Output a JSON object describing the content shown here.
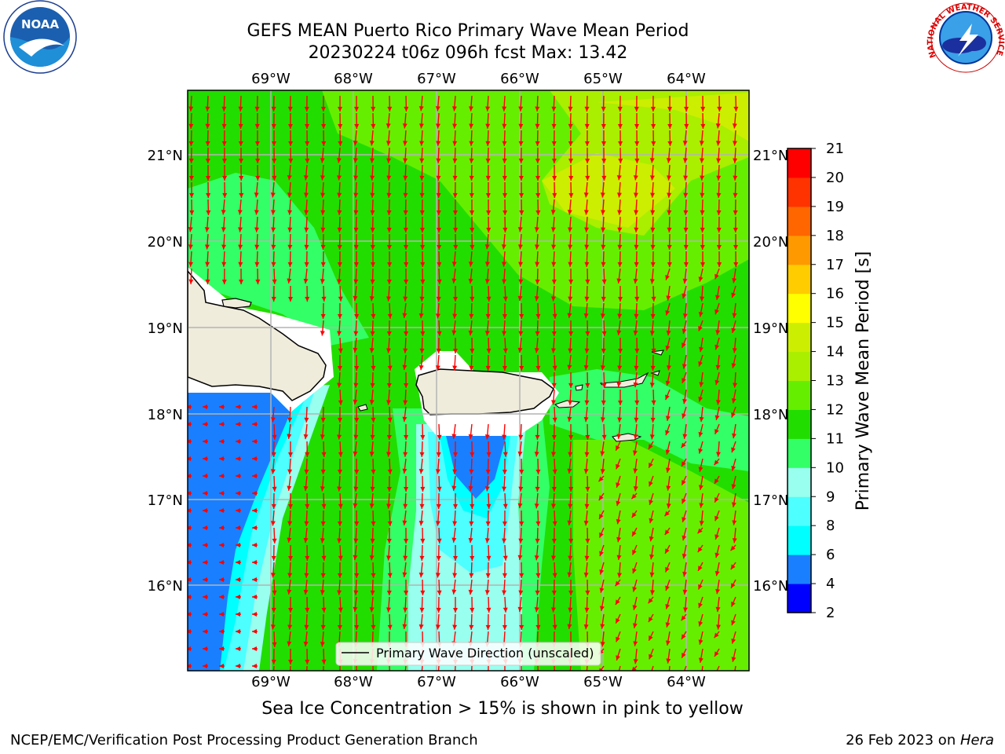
{
  "header": {
    "title_line1": "GEFS MEAN Puerto Rico Primary Wave Mean Period",
    "title_line2": "20230224 t06z 096h fcst   Max: 13.42"
  },
  "logos": {
    "noaa_text": "NOAA",
    "nws_text": "NATIONAL WEATHER SERVICE"
  },
  "axes": {
    "lon_labels": [
      "69°W",
      "68°W",
      "67°W",
      "66°W",
      "65°W",
      "64°W"
    ],
    "lat_labels": [
      "21°N",
      "20°N",
      "19°N",
      "18°N",
      "17°N",
      "16°N"
    ]
  },
  "legend": {
    "label": "Primary Wave Direction (unscaled)"
  },
  "colorbar": {
    "label": "Primary Wave Mean Period [s]",
    "ticks": [
      "2",
      "4",
      "6",
      "8",
      "9",
      "10",
      "11",
      "12",
      "13",
      "14",
      "15",
      "16",
      "17",
      "18",
      "19",
      "20",
      "21"
    ],
    "colors": [
      "#0000ff",
      "#1a7fff",
      "#00ffff",
      "#4dffff",
      "#99ffee",
      "#33ff66",
      "#22dd00",
      "#66ee00",
      "#aaee00",
      "#ccee00",
      "#ffff00",
      "#ffcc00",
      "#ff9900",
      "#ff6600",
      "#ff3300",
      "#ff0000"
    ]
  },
  "notes": {
    "ice": "Sea Ice Concentration > 15% is shown in pink to yellow"
  },
  "footer": {
    "left": "NCEP/EMC/Verification Post Processing Product Generation Branch",
    "right_prefix": "26 Feb 2023 on ",
    "right_host": "Hera"
  }
}
